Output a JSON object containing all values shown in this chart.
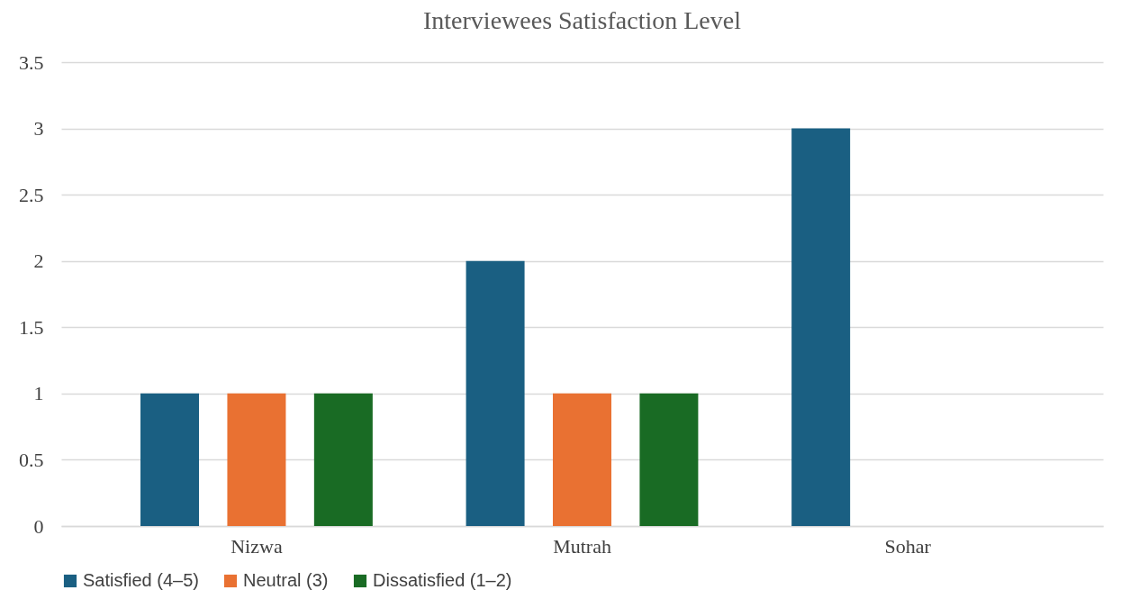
{
  "chart_data": {
    "type": "bar",
    "title": "Interviewees Satisfaction Level",
    "categories": [
      "Nizwa",
      "Mutrah",
      "Sohar"
    ],
    "series": [
      {
        "name": "Satisfied (4–5)",
        "color": "#1a5f82",
        "values": [
          1,
          2,
          3
        ]
      },
      {
        "name": "Neutral (3)",
        "color": "#e97132",
        "values": [
          1,
          1,
          0
        ]
      },
      {
        "name": "Dissatisfied (1–2)",
        "color": "#196b24",
        "values": [
          1,
          1,
          0
        ]
      }
    ],
    "ylim": [
      0,
      3.5
    ],
    "yticks": [
      0,
      0.5,
      1,
      1.5,
      2,
      2.5,
      3,
      3.5
    ],
    "grid": "y",
    "legend": "bottom"
  }
}
